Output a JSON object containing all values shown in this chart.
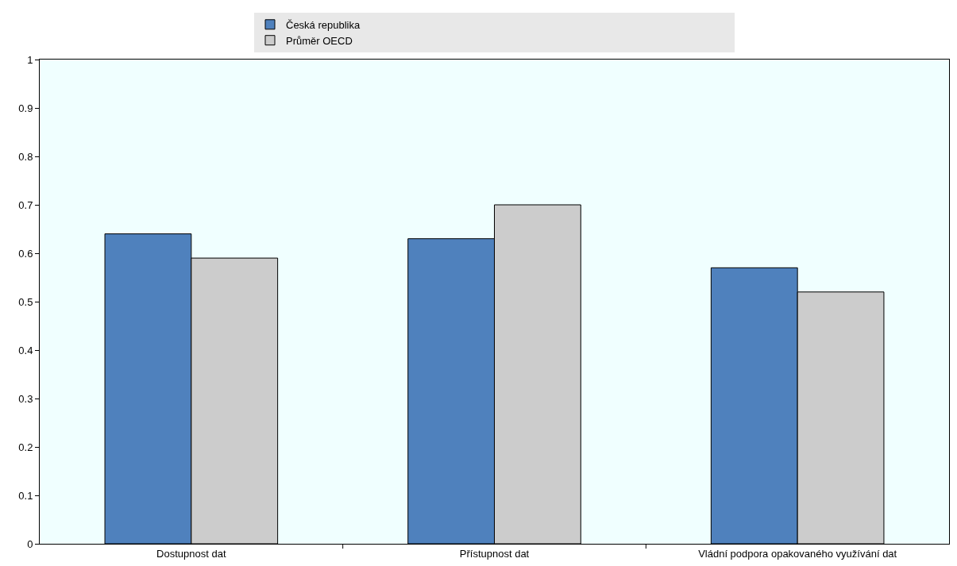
{
  "chart_data": {
    "type": "bar",
    "categories": [
      "Dostupnost dat",
      "Přístupnost dat",
      "Vládní podpora opakovaného využívání dat"
    ],
    "series": [
      {
        "name": "Česká republika",
        "color": "#4f81bd",
        "values": [
          0.64,
          0.63,
          0.57
        ]
      },
      {
        "name": "Průměr OECD",
        "color": "#cccccc",
        "values": [
          0.59,
          0.7,
          0.52
        ]
      }
    ],
    "ylim": [
      0,
      1
    ],
    "yticks": [
      0,
      0.1,
      0.2,
      0.3,
      0.4,
      0.5,
      0.6,
      0.7,
      0.8,
      0.9,
      1
    ],
    "grid": false,
    "legend": "top"
  }
}
